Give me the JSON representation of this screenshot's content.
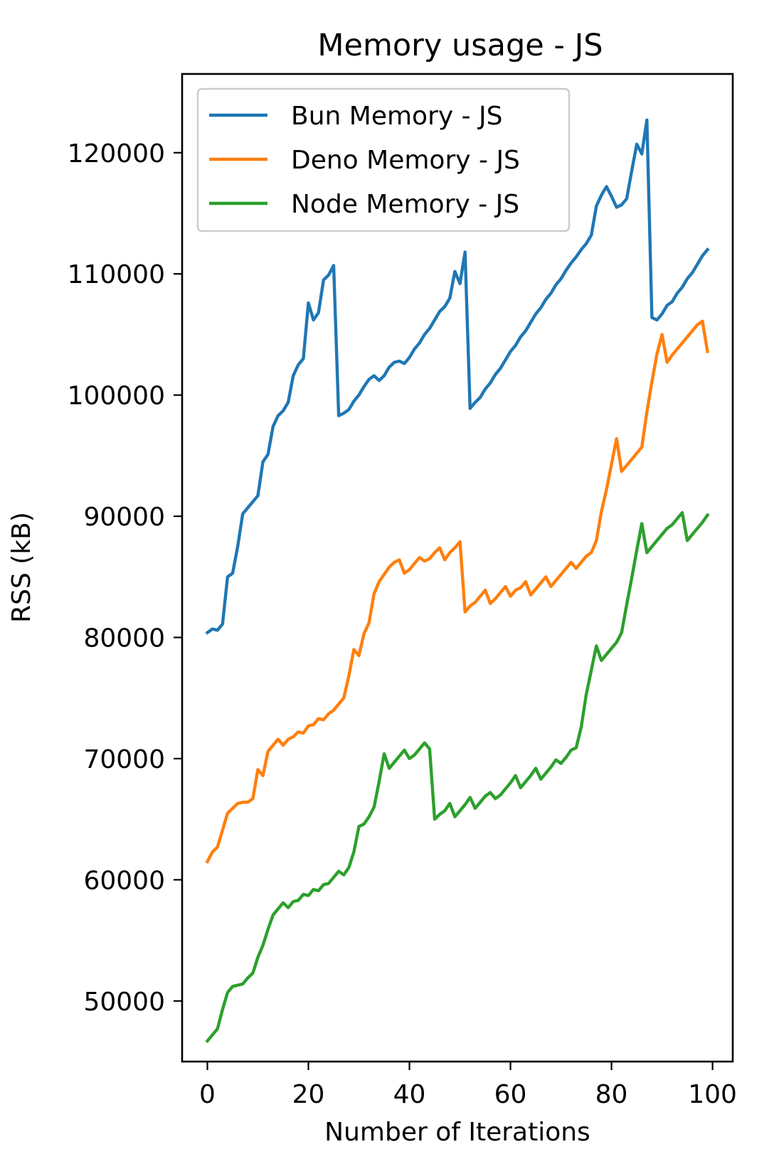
{
  "chart_data": {
    "type": "line",
    "title": "Memory usage - JS",
    "xlabel": "Number of Iterations",
    "ylabel": "RSS (kB)",
    "xlim": [
      -5,
      104
    ],
    "ylim": [
      45000,
      126500
    ],
    "xticks": [
      0,
      20,
      40,
      60,
      80,
      100
    ],
    "yticks": [
      50000,
      60000,
      70000,
      80000,
      90000,
      100000,
      110000,
      120000
    ],
    "legend": "top-left",
    "grid": false,
    "series": [
      {
        "name": "Bun Memory - JS",
        "color": "#1f77b4",
        "x": [
          0,
          1,
          2,
          3,
          4,
          5,
          6,
          7,
          8,
          9,
          10,
          11,
          12,
          13,
          14,
          15,
          16,
          17,
          18,
          19,
          20,
          21,
          22,
          23,
          24,
          25,
          26,
          27,
          28,
          29,
          30,
          31,
          32,
          33,
          34,
          35,
          36,
          37,
          38,
          39,
          40,
          41,
          42,
          43,
          44,
          45,
          46,
          47,
          48,
          49,
          50,
          51,
          52,
          53,
          54,
          55,
          56,
          57,
          58,
          59,
          60,
          61,
          62,
          63,
          64,
          65,
          66,
          67,
          68,
          69,
          70,
          71,
          72,
          73,
          74,
          75,
          76,
          77,
          78,
          79,
          80,
          81,
          82,
          83,
          84,
          85,
          86,
          87,
          88,
          89,
          90,
          91,
          92,
          93,
          94,
          95,
          96,
          97,
          98,
          99
        ],
        "values": [
          80400,
          80700,
          80600,
          81100,
          85000,
          85300,
          87500,
          90200,
          90700,
          91200,
          91700,
          94500,
          95100,
          97400,
          98300,
          98700,
          99400,
          101600,
          102500,
          103000,
          107600,
          106200,
          106800,
          109500,
          109900,
          110700,
          98300,
          98500,
          98800,
          99500,
          100000,
          100700,
          101300,
          101600,
          101200,
          101600,
          102300,
          102700,
          102800,
          102600,
          103100,
          103800,
          104300,
          105000,
          105500,
          106200,
          106900,
          107300,
          108000,
          110200,
          109200,
          111800,
          98900,
          99400,
          99800,
          100500,
          101000,
          101700,
          102200,
          102900,
          103600,
          104100,
          104800,
          105300,
          106000,
          106700,
          107200,
          107900,
          108400,
          109100,
          109600,
          110300,
          110900,
          111400,
          112000,
          112500,
          113200,
          115600,
          116500,
          117200,
          116400,
          115500,
          115700,
          116200,
          118500,
          120700,
          119900,
          122700,
          106400,
          106200,
          106700,
          107400,
          107700,
          108400,
          108900,
          109600,
          110100,
          110800,
          111500,
          112000
        ]
      },
      {
        "name": "Deno Memory - JS",
        "color": "#ff7f0e",
        "x": [
          0,
          1,
          2,
          3,
          4,
          5,
          6,
          7,
          8,
          9,
          10,
          11,
          12,
          13,
          14,
          15,
          16,
          17,
          18,
          19,
          20,
          21,
          22,
          23,
          24,
          25,
          26,
          27,
          28,
          29,
          30,
          31,
          32,
          33,
          34,
          35,
          36,
          37,
          38,
          39,
          40,
          41,
          42,
          43,
          44,
          45,
          46,
          47,
          48,
          49,
          50,
          51,
          52,
          53,
          54,
          55,
          56,
          57,
          58,
          59,
          60,
          61,
          62,
          63,
          64,
          65,
          66,
          67,
          68,
          69,
          70,
          71,
          72,
          73,
          74,
          75,
          76,
          77,
          78,
          79,
          80,
          81,
          82,
          83,
          84,
          85,
          86,
          87,
          88,
          89,
          90,
          91,
          92,
          93,
          94,
          95,
          96,
          97,
          98,
          99
        ],
        "values": [
          61500,
          62300,
          62700,
          64100,
          65500,
          65900,
          66300,
          66400,
          66400,
          66700,
          69100,
          68600,
          70600,
          71100,
          71600,
          71100,
          71600,
          71800,
          72200,
          72100,
          72700,
          72800,
          73300,
          73200,
          73700,
          74000,
          74500,
          75000,
          76800,
          79000,
          78500,
          80300,
          81200,
          83600,
          84600,
          85200,
          85800,
          86200,
          86400,
          85300,
          85600,
          86100,
          86600,
          86300,
          86500,
          87000,
          87400,
          86400,
          87000,
          87400,
          87900,
          82100,
          82600,
          82900,
          83400,
          83900,
          82800,
          83200,
          83700,
          84200,
          83400,
          83900,
          84100,
          84600,
          83500,
          84000,
          84500,
          85000,
          84200,
          84700,
          85200,
          85700,
          86200,
          85700,
          86200,
          86700,
          87000,
          88000,
          90400,
          92200,
          94300,
          96400,
          93700,
          94200,
          94700,
          95200,
          95700,
          98600,
          101100,
          103400,
          105000,
          102700,
          103300,
          103800,
          104300,
          104800,
          105300,
          105800,
          106100,
          103600
        ]
      },
      {
        "name": "Node Memory - JS",
        "color": "#2ca02c",
        "x": [
          0,
          1,
          2,
          3,
          4,
          5,
          6,
          7,
          8,
          9,
          10,
          11,
          12,
          13,
          14,
          15,
          16,
          17,
          18,
          19,
          20,
          21,
          22,
          23,
          24,
          25,
          26,
          27,
          28,
          29,
          30,
          31,
          32,
          33,
          34,
          35,
          36,
          37,
          38,
          39,
          40,
          41,
          42,
          43,
          44,
          45,
          46,
          47,
          48,
          49,
          50,
          51,
          52,
          53,
          54,
          55,
          56,
          57,
          58,
          59,
          60,
          61,
          62,
          63,
          64,
          65,
          66,
          67,
          68,
          69,
          70,
          71,
          72,
          73,
          74,
          75,
          76,
          77,
          78,
          79,
          80,
          81,
          82,
          83,
          84,
          85,
          86,
          87,
          88,
          89,
          90,
          91,
          92,
          93,
          94,
          95,
          96,
          97,
          98,
          99
        ],
        "values": [
          46700,
          47200,
          47700,
          49300,
          50700,
          51200,
          51300,
          51400,
          51900,
          52300,
          53600,
          54600,
          55900,
          57100,
          57600,
          58100,
          57700,
          58200,
          58300,
          58800,
          58700,
          59200,
          59100,
          59600,
          59700,
          60200,
          60700,
          60400,
          61000,
          62300,
          64400,
          64600,
          65200,
          66000,
          68100,
          70400,
          69200,
          69700,
          70200,
          70700,
          70000,
          70300,
          70800,
          71300,
          70800,
          65000,
          65400,
          65700,
          66300,
          65200,
          65700,
          66200,
          66800,
          65900,
          66400,
          66900,
          67200,
          66700,
          67000,
          67500,
          68000,
          68600,
          67600,
          68100,
          68600,
          69200,
          68300,
          68800,
          69300,
          69900,
          69600,
          70100,
          70700,
          70900,
          72600,
          75300,
          77300,
          79300,
          78100,
          78600,
          79100,
          79600,
          80400,
          82700,
          84900,
          87200,
          89400,
          87000,
          87500,
          88000,
          88500,
          89000,
          89300,
          89800,
          90300,
          88000,
          88500,
          89000,
          89500,
          90100
        ]
      }
    ]
  }
}
